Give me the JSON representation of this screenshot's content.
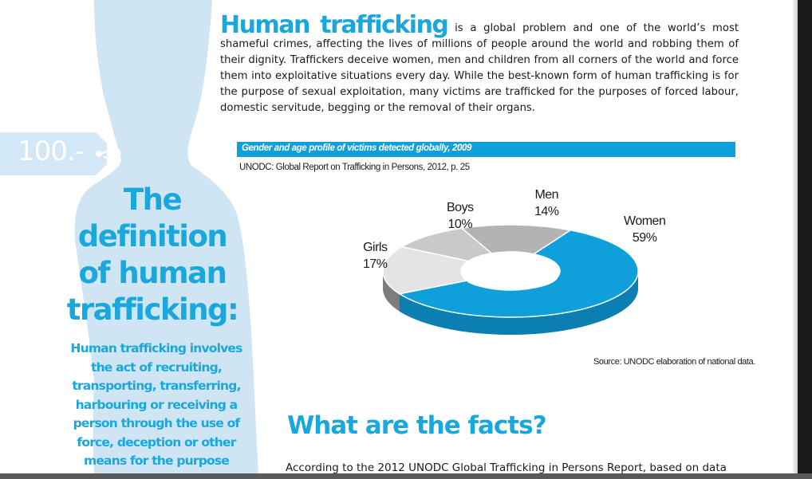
{
  "intro": {
    "heading": "Human trafficking",
    "text": "is a global problem and one of the world’s most shameful crimes, affecting the lives of millions of people around the world and robbing them of their dignity. Traffickers deceive women, men and children from all corners of the world and force them into exploitative situations every day. While the best-known form of human trafficking is for the purpose of sexual exploitation, many victims are trafficked for the purposes of forced labour, domestic servitude, begging or the removal of their organs."
  },
  "sidebar": {
    "price_tag": "100.-",
    "title_lines": [
      "The",
      "definition",
      "of human",
      "trafficking:"
    ],
    "text": "Human trafficking involves the act of recruiting, transporting, transferring, harbouring or receiving a person through the use of force, deception or other means for the purpose"
  },
  "chart_data": {
    "type": "pie",
    "title": "Gender and age profile of victims detected globally, 2009",
    "subtitle": "UNODC: Global Report on Trafficking in Persons, 2012, p. 25",
    "source": "Source: UNODC elaboration of national data.",
    "slices": [
      {
        "label": "Women",
        "value": 59,
        "display": "59%",
        "color": "#0fa0dc"
      },
      {
        "label": "Girls",
        "value": 17,
        "display": "17%",
        "color": "#e4e4e4"
      },
      {
        "label": "Boys",
        "value": 10,
        "display": "10%",
        "color": "#c9c9c9"
      },
      {
        "label": "Men",
        "value": 14,
        "display": "14%",
        "color": "#b3b3b3"
      }
    ]
  },
  "facts": {
    "heading": "What are the facts?",
    "text": "According to the 2012 UNODC Global Trafficking in Persons Report, based on data"
  },
  "colors": {
    "accent": "#1aa7dc",
    "silhouette": "#c9e4f4",
    "chart_blue": "#0fa0dc"
  }
}
